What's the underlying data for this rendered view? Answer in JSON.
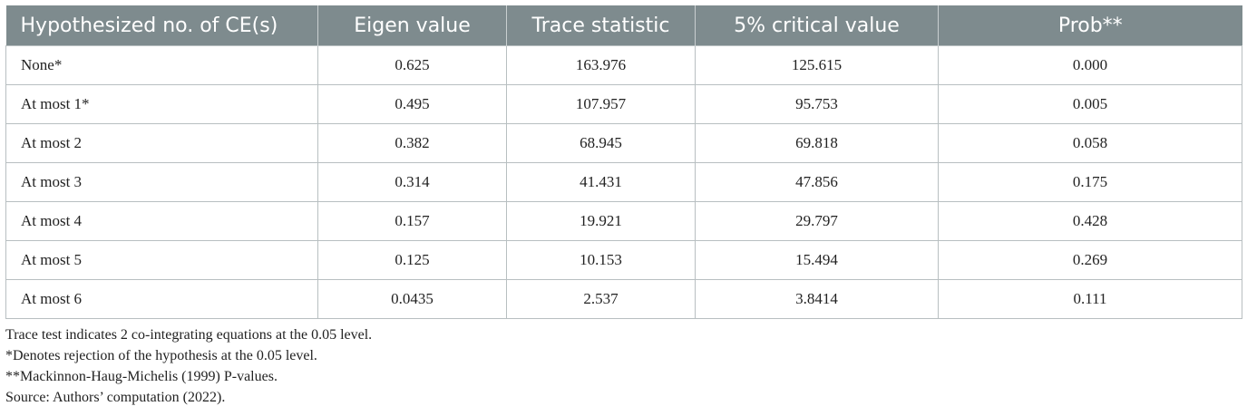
{
  "table": {
    "headers": [
      "Hypothesized no. of CE(s)",
      "Eigen value",
      "Trace statistic",
      "5% critical value",
      "Prob**"
    ],
    "rows": [
      [
        "None*",
        "0.625",
        "163.976",
        "125.615",
        "0.000"
      ],
      [
        "At most 1*",
        "0.495",
        "107.957",
        "95.753",
        "0.005"
      ],
      [
        "At most 2",
        "0.382",
        "68.945",
        "69.818",
        "0.058"
      ],
      [
        "At most 3",
        "0.314",
        "41.431",
        "47.856",
        "0.175"
      ],
      [
        "At most 4",
        "0.157",
        "19.921",
        "29.797",
        "0.428"
      ],
      [
        "At most 5",
        "0.125",
        "10.153",
        "15.494",
        "0.269"
      ],
      [
        "At most 6",
        "0.0435",
        "2.537",
        "3.8414",
        "0.111"
      ]
    ]
  },
  "notes": [
    "Trace test indicates 2 co-integrating equations at the 0.05 level.",
    "*Denotes rejection of the hypothesis at the 0.05 level.",
    "**Mackinnon-Haug-Michelis (1999) P-values.",
    "Source: Authors’ computation (2022)."
  ],
  "colors": {
    "header_background": "#7e8b8e",
    "header_text": "#ffffff",
    "grid_lines": "#b8bfc1"
  }
}
